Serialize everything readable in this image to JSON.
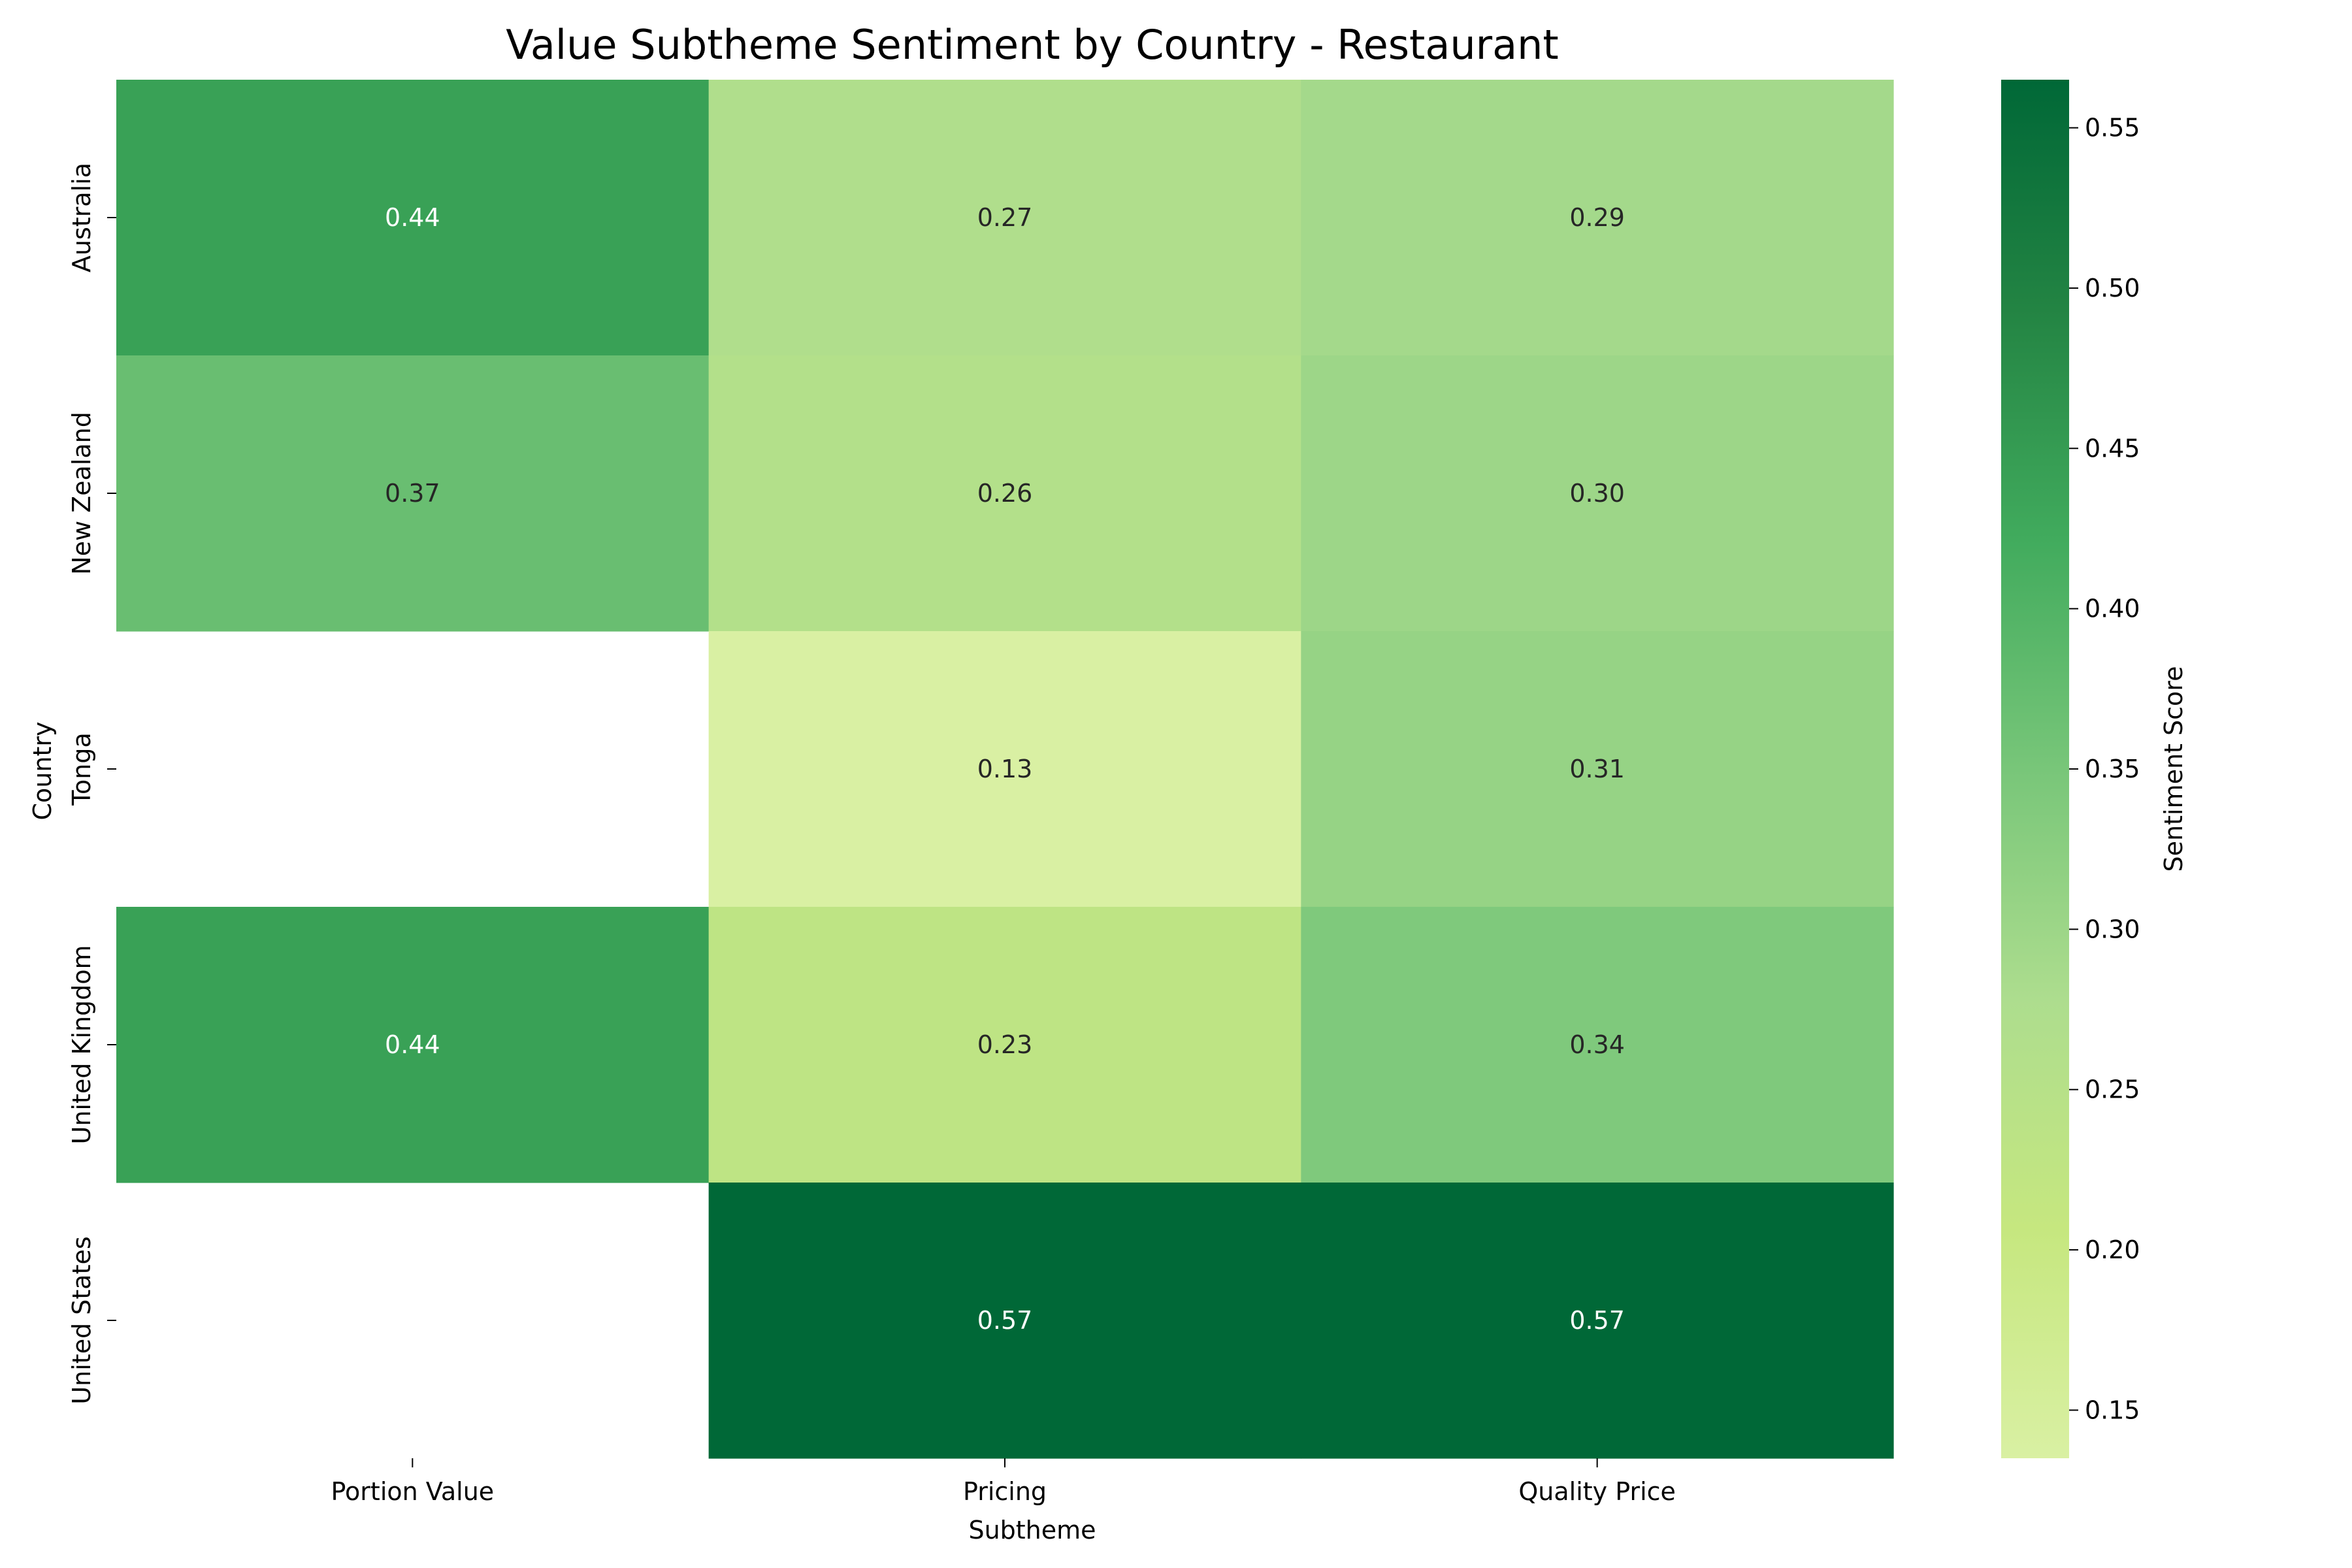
{
  "chart_data": {
    "type": "heatmap",
    "title": "Value Subtheme Sentiment by Country - Restaurant",
    "xlabel": "Subtheme",
    "ylabel": "Country",
    "x_categories": [
      "Portion Value",
      "Pricing",
      "Quality Price"
    ],
    "y_categories": [
      "Australia",
      "New Zealand",
      "Tonga",
      "United Kingdom",
      "United States"
    ],
    "values": [
      [
        0.44,
        0.27,
        0.29
      ],
      [
        0.37,
        0.26,
        0.3
      ],
      [
        null,
        0.13,
        0.31
      ],
      [
        0.44,
        0.23,
        0.34
      ],
      [
        null,
        0.57,
        0.57
      ]
    ],
    "value_labels": [
      [
        "0.44",
        "0.27",
        "0.29"
      ],
      [
        "0.37",
        "0.26",
        "0.30"
      ],
      [
        "",
        "0.13",
        "0.31"
      ],
      [
        "0.44",
        "0.23",
        "0.34"
      ],
      [
        "",
        "0.57",
        "0.57"
      ]
    ],
    "colorbar": {
      "label": "Sentiment Score",
      "range": [
        0.135,
        0.565
      ],
      "ticks": [
        0.15,
        0.2,
        0.25,
        0.3,
        0.35,
        0.4,
        0.45,
        0.5,
        0.55
      ],
      "tick_labels": [
        "0.15",
        "0.20",
        "0.25",
        "0.30",
        "0.35",
        "0.40",
        "0.45",
        "0.50",
        "0.55"
      ],
      "colormap": "YlGn",
      "color_stops": [
        "#d9f0a3",
        "#c6e77f",
        "#addd8e",
        "#78c679",
        "#41ab5d",
        "#238443",
        "#006837"
      ]
    },
    "grid": false,
    "legend": "none"
  }
}
